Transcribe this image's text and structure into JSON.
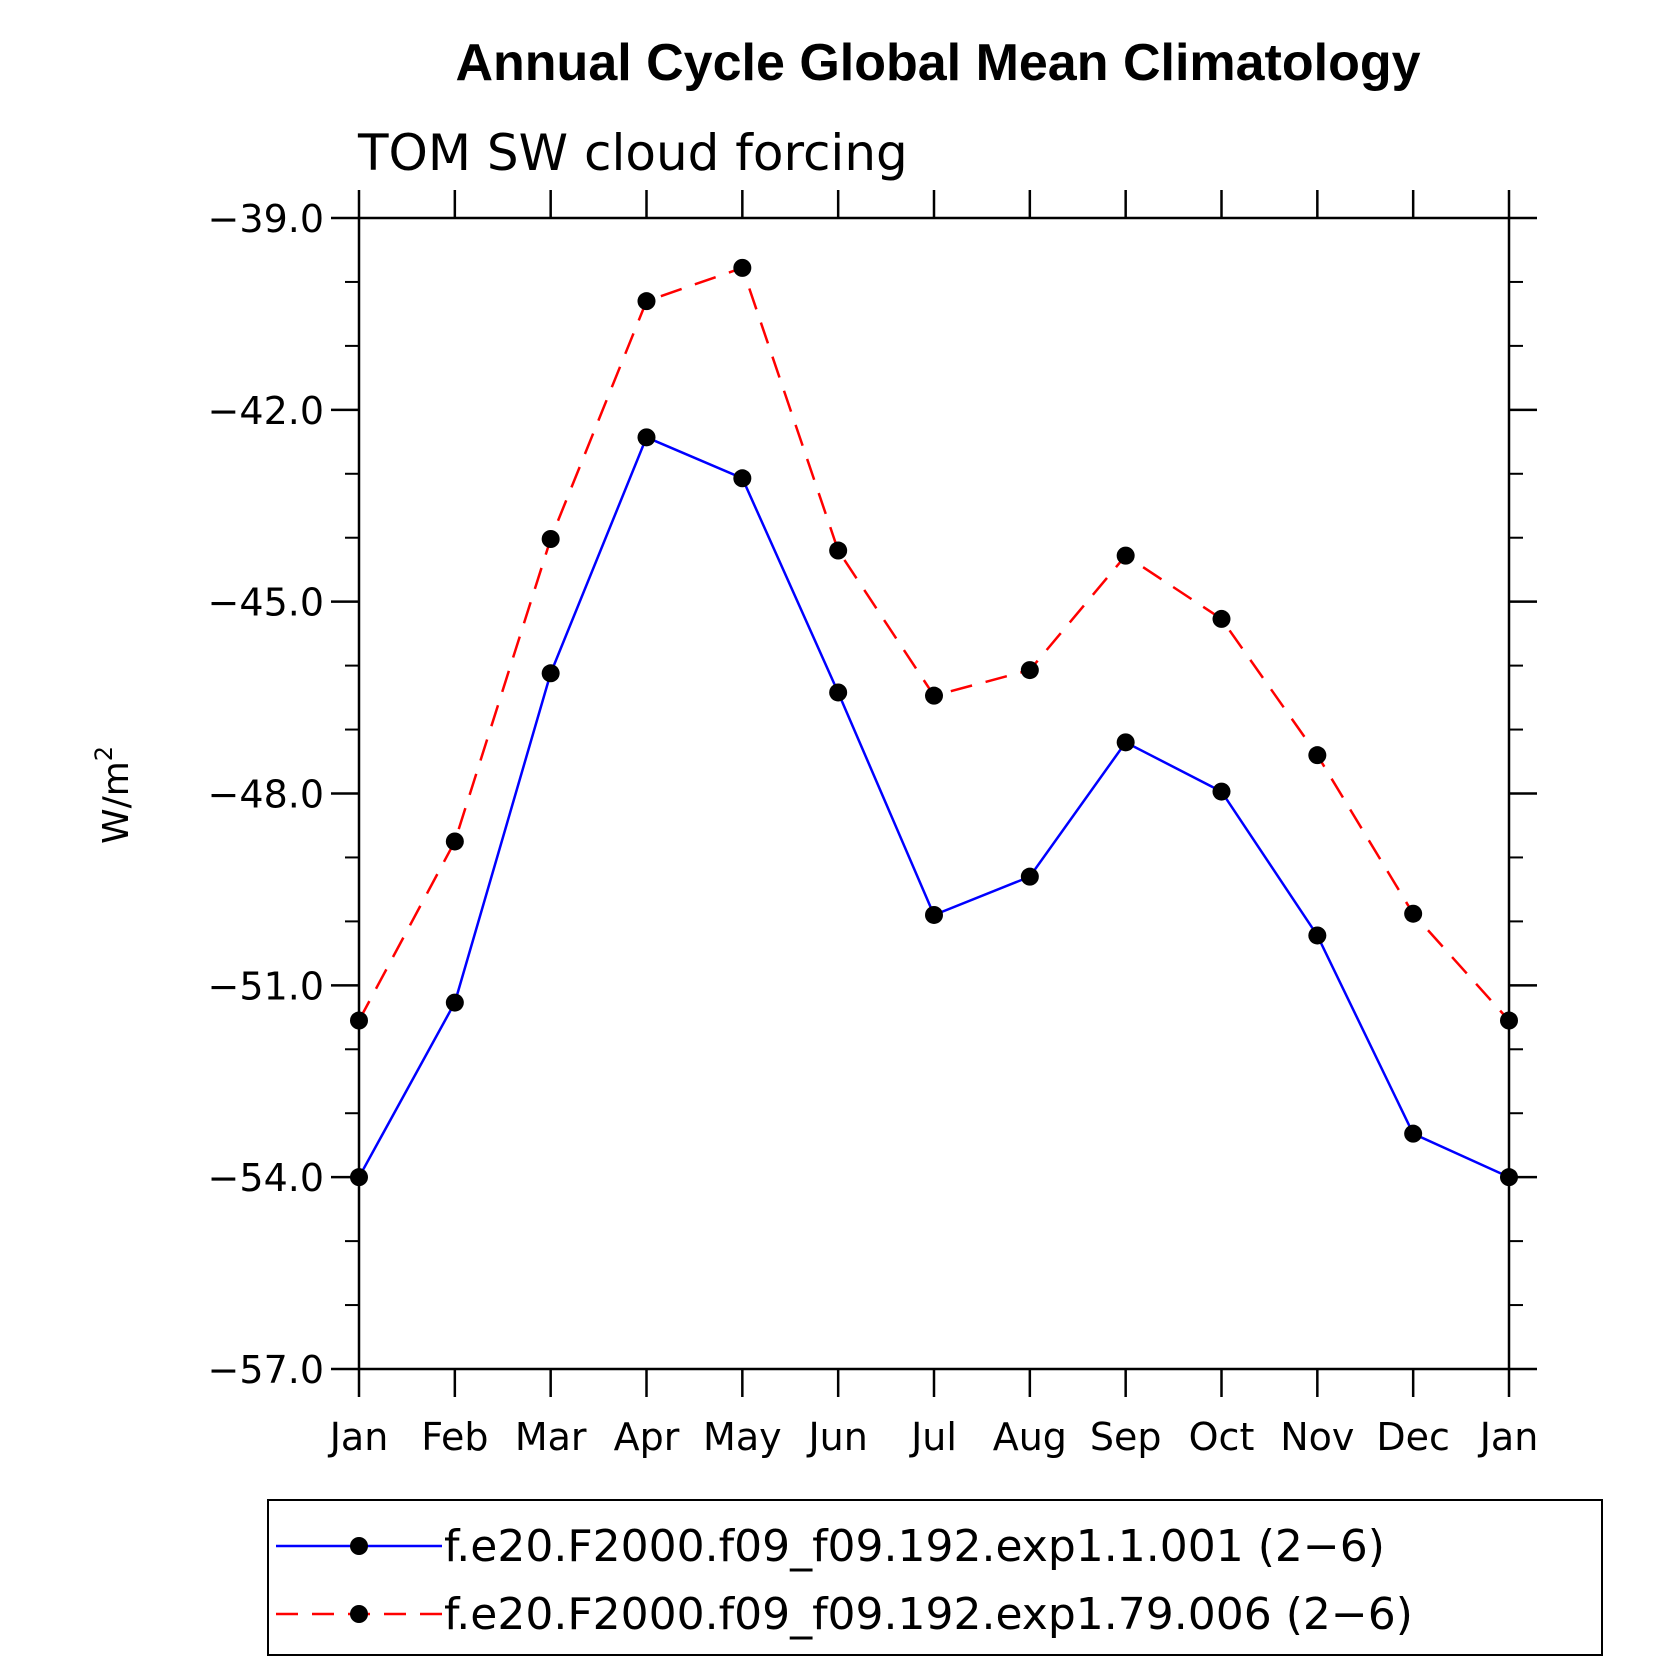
{
  "chart_data": {
    "type": "line",
    "title": "Annual Cycle Global Mean Climatology",
    "subtitle": "TOM SW cloud forcing",
    "ylabel": "W/m",
    "ylabel_superscript": "2",
    "xlabel": "",
    "ylim": [
      -57.0,
      -39.0
    ],
    "yticks": [
      "−39.0",
      "−42.0",
      "−45.0",
      "−48.0",
      "−51.0",
      "−54.0",
      "−57.0"
    ],
    "ytick_values": [
      -39,
      -42,
      -45,
      -48,
      -51,
      -54,
      -57
    ],
    "categories": [
      "Jan",
      "Feb",
      "Mar",
      "Apr",
      "May",
      "Jun",
      "Jul",
      "Aug",
      "Sep",
      "Oct",
      "Nov",
      "Dec",
      "Jan"
    ],
    "grid": false,
    "legend_position": "bottom",
    "series": [
      {
        "name": "f.e20.F2000.f09_f09.192.exp1.1.001 (2−6)",
        "color": "#0000ff",
        "dash": "solid",
        "marker": "filled-circle",
        "values": [
          -54.0,
          -51.27,
          -46.12,
          -42.43,
          -43.07,
          -46.42,
          -49.9,
          -49.3,
          -47.2,
          -47.97,
          -50.22,
          -53.32,
          -54.0
        ]
      },
      {
        "name": "f.e20.F2000.f09_f09.192.exp1.79.006 (2−6)",
        "color": "#ff0000",
        "dash": "dashed",
        "marker": "filled-circle",
        "values": [
          -51.55,
          -48.75,
          -44.02,
          -40.3,
          -39.78,
          -44.2,
          -46.47,
          -46.07,
          -44.28,
          -45.27,
          -47.4,
          -49.88,
          -51.55
        ]
      }
    ]
  }
}
